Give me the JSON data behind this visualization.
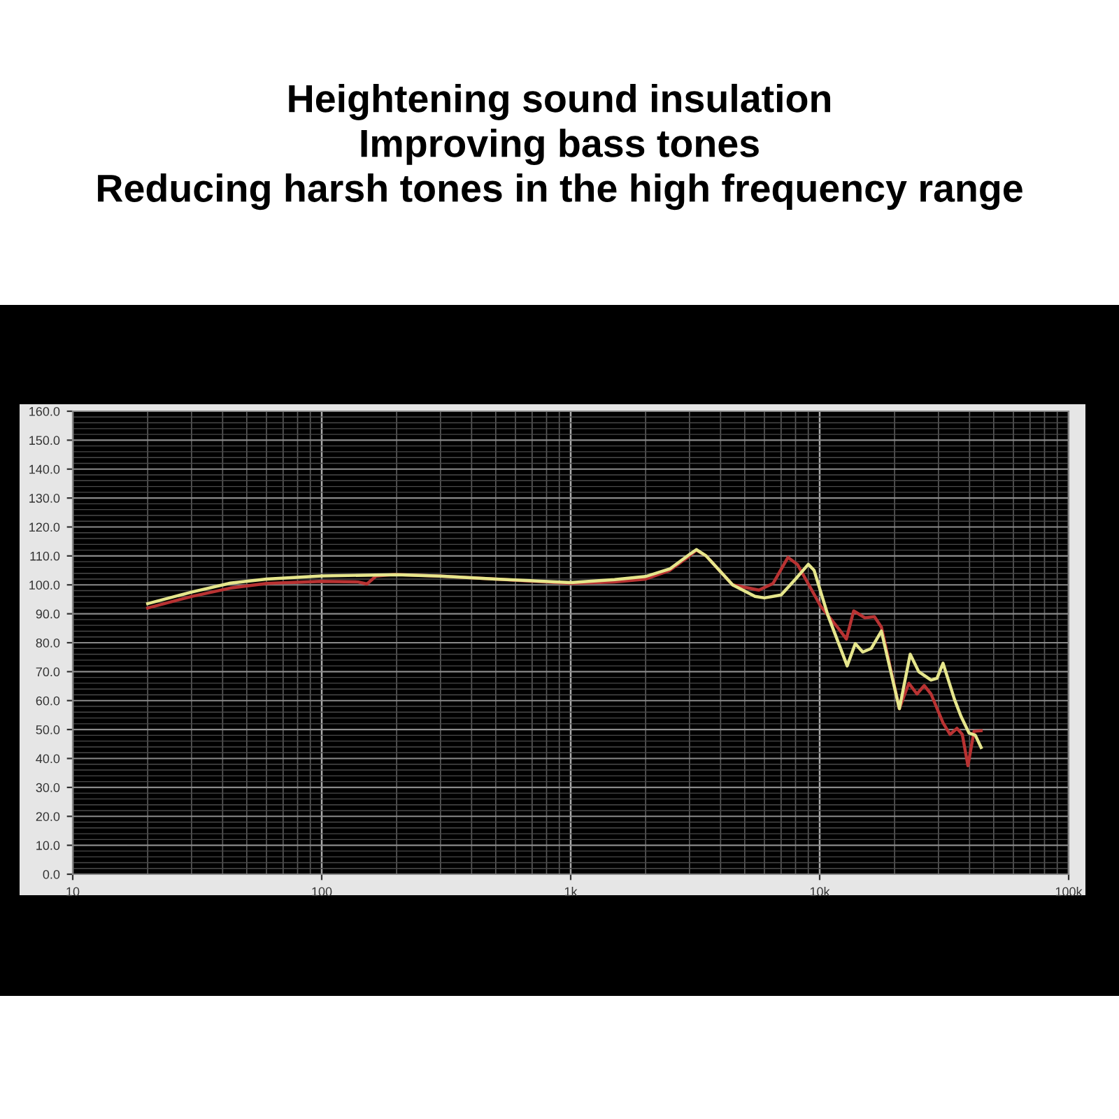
{
  "chart_data": {
    "type": "line",
    "title": "Heightening sound insulation\nImproving bass tones\nReducing harsh tones in the high frequency range",
    "log": "x",
    "xlim": [
      10,
      100000
    ],
    "xticks": [
      10,
      100,
      {
        "value": 1000,
        "label": "1k"
      },
      {
        "value": 10000,
        "label": "10k"
      },
      {
        "value": 100000,
        "label": "100k"
      }
    ],
    "ylim": [
      0,
      160
    ],
    "yticks": [
      {
        "value": 0,
        "label": "0.0"
      },
      {
        "value": 10,
        "label": "10.0"
      },
      {
        "value": 20,
        "label": "20.0"
      },
      {
        "value": 30,
        "label": "30.0"
      },
      {
        "value": 40,
        "label": "40.0"
      },
      {
        "value": 50,
        "label": "50.0"
      },
      {
        "value": 60,
        "label": "60.0"
      },
      {
        "value": 70,
        "label": "70.0"
      },
      {
        "value": 80,
        "label": "80.0"
      },
      {
        "value": 90,
        "label": "90.0"
      },
      {
        "value": 100,
        "label": "100.0"
      },
      {
        "value": 110,
        "label": "110.0"
      },
      {
        "value": 120,
        "label": "120.0"
      },
      {
        "value": 130,
        "label": "130.0"
      },
      {
        "value": 140,
        "label": "140.0"
      },
      {
        "value": 150,
        "label": "150.0"
      },
      {
        "value": 160,
        "label": "160.0"
      }
    ],
    "grid": true,
    "marker": "none",
    "line_style": "solid",
    "series": [
      {
        "color": "#b83232",
        "x": [
          20,
          30,
          43,
          60,
          100,
          140,
          152,
          165,
          195,
          300,
          500,
          1000,
          1500,
          2000,
          2500,
          3000,
          3200,
          3500,
          4470,
          5700,
          6500,
          7460,
          8150,
          10100,
          12000,
          12800,
          13700,
          15200,
          16600,
          17700,
          20900,
          22800,
          24600,
          26300,
          28000,
          31300,
          33400,
          35600,
          37400,
          39400,
          41700,
          44500
        ],
        "values": [
          92,
          96,
          98.9,
          100.5,
          101.2,
          101,
          100.3,
          103,
          103.6,
          103,
          102,
          100.5,
          101,
          102,
          105,
          110,
          112,
          110,
          100,
          98.2,
          100.5,
          109.5,
          107,
          92.6,
          84.5,
          81.3,
          91,
          88.6,
          89,
          85.4,
          57.2,
          66,
          62.3,
          65.2,
          62.3,
          52.3,
          48.3,
          50.4,
          48.3,
          37.5,
          49.4,
          49.6
        ]
      },
      {
        "color": "#e6e68c",
        "x": [
          20,
          30,
          43,
          60,
          100,
          200,
          300,
          500,
          1000,
          1500,
          2000,
          2500,
          3000,
          3200,
          3500,
          4470,
          5500,
          6000,
          7000,
          8000,
          9000,
          9500,
          10800,
          12900,
          13900,
          14900,
          16100,
          17700,
          20900,
          23100,
          25000,
          28000,
          29600,
          31300,
          34800,
          36900,
          39800,
          42200,
          44500
        ],
        "values": [
          93.5,
          97.5,
          100.6,
          102,
          103.1,
          103.5,
          103,
          102,
          100.8,
          101.8,
          102.9,
          105.5,
          110.5,
          112.2,
          110,
          100,
          96,
          95.5,
          96.5,
          102,
          107.1,
          105,
          89.4,
          72,
          79.7,
          76.8,
          78,
          84,
          57.2,
          76,
          70,
          67.1,
          67.7,
          72.9,
          60.4,
          54.7,
          48.8,
          48,
          43.8
        ]
      }
    ]
  }
}
